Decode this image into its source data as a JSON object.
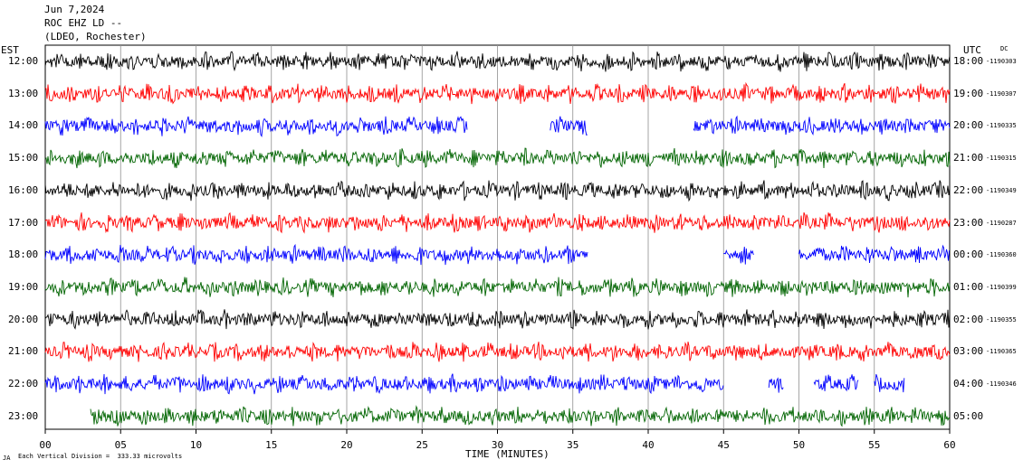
{
  "header": {
    "date": "Jun 7,2024",
    "station": "ROC EHZ LD --",
    "network": "(LDEO, Rochester)"
  },
  "left_zone": "EST",
  "right_zone": "UTC",
  "dc_label": "DC",
  "footer": {
    "scale_note": "Each Vertical Division =  333.33 microvolts",
    "corner_mark": "JA"
  },
  "chart_data": {
    "type": "line",
    "title": "",
    "xlabel": "TIME (MINUTES)",
    "ylabel": "",
    "xlim": [
      0,
      60
    ],
    "x_ticks": [
      "00",
      "05",
      "10",
      "15",
      "20",
      "25",
      "30",
      "35",
      "40",
      "45",
      "50",
      "55",
      "60"
    ],
    "grid": true,
    "colors": [
      "#000000",
      "#ff0000",
      "#0000ff",
      "#006400"
    ],
    "rows": [
      {
        "est": "12:00",
        "utc": "18:00",
        "dc": "-1190303",
        "color": "#000000",
        "segments": [
          [
            0,
            60
          ]
        ]
      },
      {
        "est": "13:00",
        "utc": "19:00",
        "dc": "-1190307",
        "color": "#ff0000",
        "segments": [
          [
            0,
            60
          ]
        ]
      },
      {
        "est": "14:00",
        "utc": "20:00",
        "dc": "-1190335",
        "color": "#0000ff",
        "segments": [
          [
            0,
            28
          ],
          [
            33.5,
            36
          ],
          [
            43,
            60
          ]
        ]
      },
      {
        "est": "15:00",
        "utc": "21:00",
        "dc": "-1190315",
        "color": "#006400",
        "segments": [
          [
            0,
            60
          ]
        ]
      },
      {
        "est": "16:00",
        "utc": "22:00",
        "dc": "-1190349",
        "color": "#000000",
        "segments": [
          [
            0,
            60
          ]
        ]
      },
      {
        "est": "17:00",
        "utc": "23:00",
        "dc": "-1190287",
        "color": "#ff0000",
        "segments": [
          [
            0,
            60
          ]
        ]
      },
      {
        "est": "18:00",
        "utc": "00:00",
        "dc": "-1190360",
        "color": "#0000ff",
        "segments": [
          [
            0,
            36
          ],
          [
            45,
            47
          ],
          [
            50,
            60
          ]
        ]
      },
      {
        "est": "19:00",
        "utc": "01:00",
        "dc": "-1190399",
        "color": "#006400",
        "segments": [
          [
            0,
            60
          ]
        ]
      },
      {
        "est": "20:00",
        "utc": "02:00",
        "dc": "-1190355",
        "color": "#000000",
        "segments": [
          [
            0,
            60
          ]
        ]
      },
      {
        "est": "21:00",
        "utc": "03:00",
        "dc": "-1190365",
        "color": "#ff0000",
        "segments": [
          [
            0,
            60
          ]
        ]
      },
      {
        "est": "22:00",
        "utc": "04:00",
        "dc": "-1190346",
        "color": "#0000ff",
        "segments": [
          [
            0,
            45
          ],
          [
            48,
            49
          ],
          [
            51,
            54
          ],
          [
            55,
            57
          ]
        ]
      },
      {
        "est": "23:00",
        "utc": "05:00",
        "dc": "",
        "color": "#006400",
        "segments": [
          [
            3,
            60
          ]
        ]
      }
    ]
  }
}
